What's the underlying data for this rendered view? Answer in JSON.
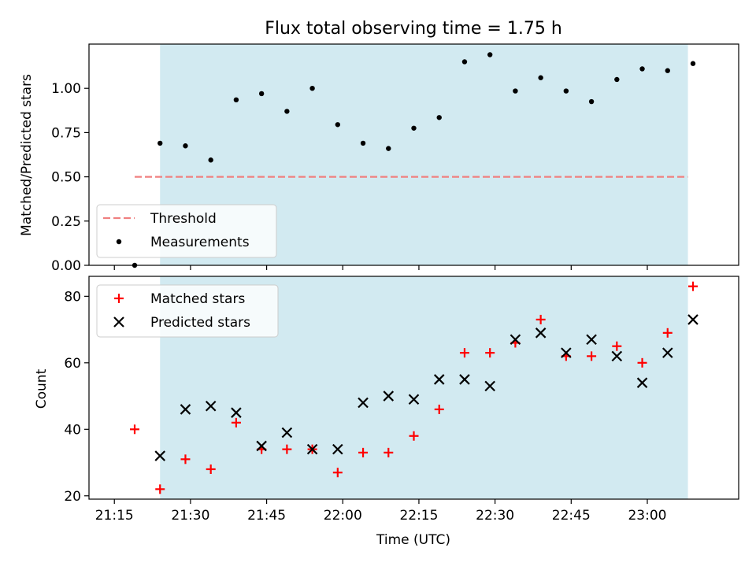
{
  "chart_data": [
    {
      "type": "scatter",
      "title": "Flux total observing time = 1.75 h",
      "xlabel": "",
      "ylabel": "Matched/Predicted stars",
      "ylim": [
        0,
        1.25
      ],
      "yticks": [
        0.0,
        0.25,
        0.5,
        0.75,
        1.0
      ],
      "ytick_labels": [
        "0.00",
        "0.25",
        "0.50",
        "0.75",
        "1.00"
      ],
      "xlim": [
        "21:10",
        "23:18"
      ],
      "shaded_region": {
        "from": "21:24",
        "to": "23:08",
        "color": "#add8e6"
      },
      "legend": {
        "position": "lower-left",
        "entries": [
          "Threshold",
          "Measurements"
        ]
      },
      "series": [
        {
          "name": "Threshold",
          "style": "dashed-line",
          "color": "#f08080",
          "x": [
            "21:19",
            "23:08"
          ],
          "y": [
            0.5,
            0.5
          ]
        },
        {
          "name": "Measurements",
          "style": "dot",
          "color": "#000000",
          "x": [
            "21:19",
            "21:24",
            "21:29",
            "21:34",
            "21:39",
            "21:44",
            "21:49",
            "21:54",
            "21:59",
            "22:04",
            "22:09",
            "22:14",
            "22:19",
            "22:24",
            "22:29",
            "22:34",
            "22:39",
            "22:44",
            "22:49",
            "22:54",
            "22:59",
            "23:04",
            "23:09"
          ],
          "y": [
            0.0,
            0.69,
            0.675,
            0.595,
            0.935,
            0.97,
            0.87,
            1.0,
            0.795,
            0.69,
            0.66,
            0.775,
            0.835,
            1.15,
            1.19,
            0.985,
            1.06,
            0.985,
            0.925,
            1.05,
            1.11,
            1.1,
            1.14
          ]
        }
      ]
    },
    {
      "type": "scatter",
      "title": "",
      "xlabel": "Time (UTC)",
      "ylabel": "Count",
      "ylim": [
        19,
        86
      ],
      "yticks": [
        20,
        40,
        60,
        80
      ],
      "ytick_labels": [
        "20",
        "40",
        "60",
        "80"
      ],
      "xlim": [
        "21:10",
        "23:18"
      ],
      "xticks": [
        "21:15",
        "21:30",
        "21:45",
        "22:00",
        "22:15",
        "22:30",
        "22:45",
        "23:00"
      ],
      "xtick_labels": [
        "21:15",
        "21:30",
        "21:45",
        "22:00",
        "22:15",
        "22:30",
        "22:45",
        "23:00"
      ],
      "shaded_region": {
        "from": "21:24",
        "to": "23:08",
        "color": "#add8e6"
      },
      "legend": {
        "position": "upper-left",
        "entries": [
          "Matched stars",
          "Predicted stars"
        ]
      },
      "series": [
        {
          "name": "Matched stars",
          "style": "plus",
          "color": "#ff0000",
          "x": [
            "21:19",
            "21:24",
            "21:29",
            "21:34",
            "21:39",
            "21:44",
            "21:49",
            "21:54",
            "21:59",
            "22:04",
            "22:09",
            "22:14",
            "22:19",
            "22:24",
            "22:29",
            "22:34",
            "22:39",
            "22:44",
            "22:49",
            "22:54",
            "22:59",
            "23:04",
            "23:09"
          ],
          "y": [
            40,
            22,
            31,
            28,
            42,
            34,
            34,
            34,
            27,
            33,
            33,
            38,
            46,
            63,
            63,
            66,
            73,
            62,
            62,
            65,
            60,
            69,
            83
          ]
        },
        {
          "name": "Predicted stars",
          "style": "x",
          "color": "#000000",
          "x": [
            "21:24",
            "21:29",
            "21:34",
            "21:39",
            "21:44",
            "21:49",
            "21:54",
            "21:59",
            "22:04",
            "22:09",
            "22:14",
            "22:19",
            "22:24",
            "22:29",
            "22:34",
            "22:39",
            "22:44",
            "22:49",
            "22:54",
            "22:59",
            "23:04",
            "23:09"
          ],
          "y": [
            32,
            46,
            47,
            45,
            35,
            39,
            34,
            34,
            48,
            50,
            49,
            55,
            55,
            53,
            67,
            69,
            63,
            67,
            62,
            54,
            63,
            73
          ]
        }
      ]
    }
  ]
}
